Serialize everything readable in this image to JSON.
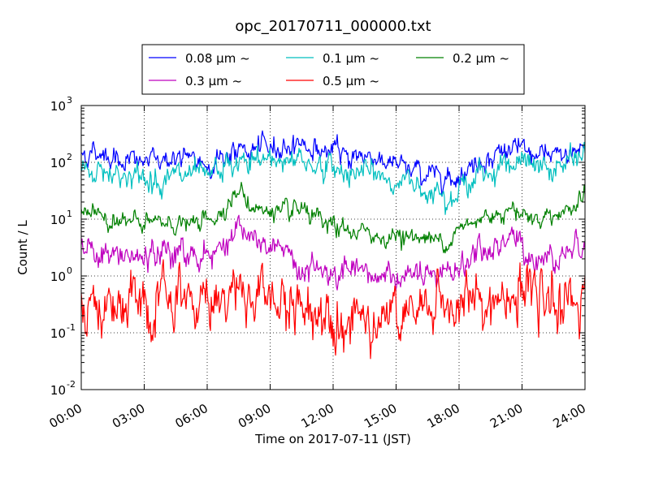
{
  "chart_data": {
    "type": "line",
    "title": "opc_20170711_000000.txt",
    "xlabel": "Time on 2017-07-11 (JST)",
    "ylabel": "Count / L",
    "yscale": "log",
    "ylim": [
      0.01,
      1000
    ],
    "xlim": [
      "00:00",
      "24:00"
    ],
    "x_ticks": [
      "00:00",
      "03:00",
      "06:00",
      "09:00",
      "12:00",
      "15:00",
      "18:00",
      "21:00",
      "24:00"
    ],
    "y_ticks": [
      {
        "base": "10",
        "exp": "-2"
      },
      {
        "base": "10",
        "exp": "-1"
      },
      {
        "base": "10",
        "exp": "0"
      },
      {
        "base": "10",
        "exp": "1"
      },
      {
        "base": "10",
        "exp": "2"
      },
      {
        "base": "10",
        "exp": "3"
      }
    ],
    "grid": true,
    "legend_position": "top",
    "x_hours": [
      0,
      1,
      2,
      3,
      4,
      5,
      6,
      6.5,
      7,
      7.5,
      8,
      9,
      10,
      10.5,
      11,
      12,
      13,
      14,
      15,
      16,
      16.5,
      17,
      17.5,
      18,
      19,
      20,
      20.5,
      21,
      22,
      23,
      24
    ],
    "series": [
      {
        "name": "0.08 µm ~",
        "color": "#0000ff",
        "values": [
          140,
          150,
          110,
          100,
          120,
          110,
          95,
          110,
          140,
          150,
          160,
          180,
          200,
          230,
          170,
          150,
          130,
          130,
          85,
          70,
          60,
          70,
          55,
          60,
          110,
          150,
          190,
          150,
          120,
          130,
          200
        ]
      },
      {
        "name": "0.1 µm ~",
        "color": "#00bfbf",
        "values": [
          70,
          75,
          60,
          50,
          55,
          55,
          50,
          70,
          80,
          90,
          100,
          110,
          120,
          110,
          95,
          75,
          70,
          60,
          45,
          40,
          35,
          35,
          30,
          32,
          60,
          90,
          110,
          90,
          75,
          85,
          140
        ]
      },
      {
        "name": "0.2 µm ~",
        "color": "#008000",
        "values": [
          15,
          12,
          9,
          8,
          9,
          8,
          9,
          12,
          20,
          30,
          18,
          13,
          12,
          14,
          10,
          7,
          6,
          5,
          5,
          5,
          4.5,
          4,
          5,
          6,
          10,
          14,
          18,
          12,
          11,
          14,
          25
        ]
      },
      {
        "name": "0.3 µm ~",
        "color": "#bf00bf",
        "values": [
          3,
          2.5,
          2,
          2,
          2.5,
          2.5,
          2.5,
          2.5,
          5,
          8,
          4,
          3,
          2,
          1.5,
          1.2,
          1,
          0.9,
          1,
          1,
          1,
          0.8,
          0.8,
          1.2,
          1.5,
          2.5,
          3.5,
          5,
          3,
          2,
          2.5,
          4.5
        ]
      },
      {
        "name": "0.5 µm ~",
        "color": "#ff0000",
        "values": [
          0.35,
          0.3,
          0.25,
          0.22,
          0.3,
          0.35,
          0.3,
          0.5,
          0.6,
          0.6,
          0.45,
          0.4,
          0.3,
          0.25,
          0.25,
          0.25,
          0.22,
          0.2,
          0.2,
          0.18,
          0.25,
          0.3,
          0.3,
          0.35,
          0.3,
          0.4,
          0.5,
          0.4,
          0.3,
          0.4,
          0.45
        ]
      }
    ]
  }
}
